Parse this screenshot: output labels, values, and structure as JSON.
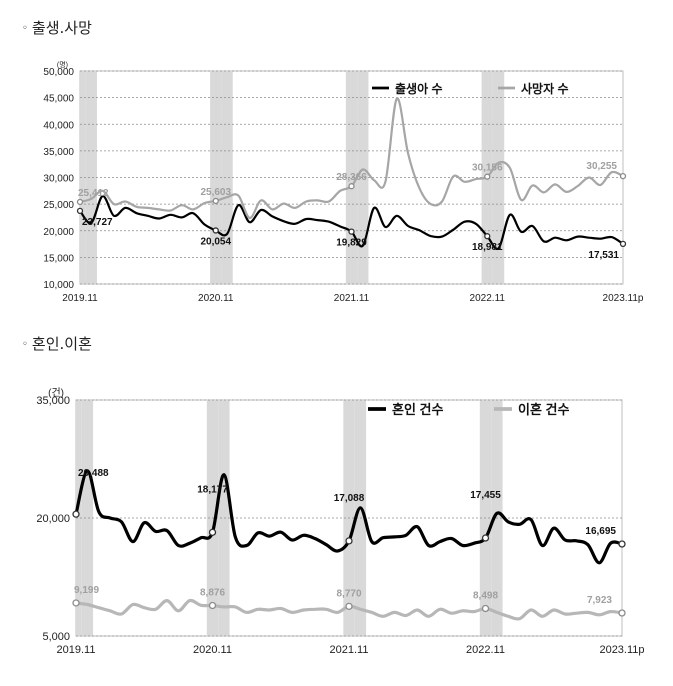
{
  "sections": [
    {
      "bullet": "◦",
      "title": "출생.사망"
    },
    {
      "bullet": "◦",
      "title": "혼인.이혼"
    }
  ],
  "chart_data": [
    {
      "type": "line",
      "unit": "(명)",
      "ylim": [
        10000,
        50000
      ],
      "yticks": [
        "10,000",
        "15,000",
        "20,000",
        "25,000",
        "30,000",
        "35,000",
        "40,000",
        "45,000",
        "50,000"
      ],
      "xlim": [
        0,
        48
      ],
      "xticks": [
        {
          "x": 0,
          "label": "2019.11"
        },
        {
          "x": 12,
          "label": "2020.11"
        },
        {
          "x": 24,
          "label": "2021.11"
        },
        {
          "x": 36,
          "label": "2022.11"
        },
        {
          "x": 48,
          "label": "2023.11p"
        }
      ],
      "shaded_months": [
        0,
        1,
        12,
        13,
        24,
        25,
        36,
        37
      ],
      "grid": true,
      "legend_position": "top",
      "series": [
        {
          "name": "출생아 수",
          "color": "#000000",
          "values": [
            23727,
            21500,
            26500,
            22800,
            24300,
            23300,
            22800,
            22300,
            23000,
            22500,
            23300,
            21200,
            20054,
            19400,
            24800,
            21600,
            23900,
            22700,
            21800,
            21300,
            22200,
            22000,
            21700,
            20800,
            19829,
            17200,
            24300,
            20700,
            22800,
            20900,
            20100,
            19000,
            18900,
            20200,
            21700,
            21300,
            18981,
            16700,
            23000,
            19800,
            20900,
            18000,
            18700,
            18200,
            18900,
            18700,
            18500,
            18800,
            17531
          ],
          "labels": [
            {
              "x": 0,
              "text": "23,727"
            },
            {
              "x": 12,
              "text": "20,054"
            },
            {
              "x": 24,
              "text": "19,829"
            },
            {
              "x": 36,
              "text": "18,981"
            },
            {
              "x": 48,
              "text": "17,531"
            }
          ]
        },
        {
          "name": "사망자 수",
          "color": "#a6a6a6",
          "values": [
            25412,
            26000,
            27500,
            25000,
            25500,
            24500,
            24300,
            24000,
            23800,
            24800,
            24000,
            25200,
            25603,
            26300,
            26600,
            22400,
            25700,
            24000,
            25100,
            24300,
            25500,
            25700,
            25500,
            27500,
            28366,
            31500,
            29500,
            29200,
            44800,
            34500,
            28000,
            25000,
            25500,
            30200,
            29200,
            29700,
            30156,
            32800,
            31800,
            25800,
            28500,
            27200,
            28700,
            27300,
            28400,
            30000,
            28600,
            31000,
            30255
          ],
          "labels": [
            {
              "x": 0,
              "text": "25,412"
            },
            {
              "x": 12,
              "text": "25,603"
            },
            {
              "x": 24,
              "text": "28,366"
            },
            {
              "x": 36,
              "text": "30,156"
            },
            {
              "x": 48,
              "text": "30,255"
            }
          ]
        }
      ]
    },
    {
      "type": "line",
      "unit": "(건)",
      "ylim": [
        5000,
        35000
      ],
      "yticks": [
        "5,000",
        "20,000",
        "35,000"
      ],
      "xlim": [
        0,
        48
      ],
      "xticks": [
        {
          "x": 0,
          "label": "2019.11"
        },
        {
          "x": 12,
          "label": "2020.11"
        },
        {
          "x": 24,
          "label": "2021.11"
        },
        {
          "x": 36,
          "label": "2022.11"
        },
        {
          "x": 48,
          "label": "2023.11p"
        }
      ],
      "shaded_months": [
        0,
        1,
        12,
        13,
        24,
        25,
        36,
        37
      ],
      "grid": true,
      "legend_position": "top",
      "series": [
        {
          "name": "혼인 건수",
          "color": "#000000",
          "values": [
            20488,
            26000,
            20800,
            20000,
            19500,
            17000,
            19400,
            18300,
            18400,
            16500,
            16800,
            17500,
            18177,
            25500,
            17600,
            16500,
            18100,
            17700,
            18200,
            17200,
            17800,
            17400,
            16600,
            15800,
            17088,
            21300,
            17000,
            17500,
            17600,
            17800,
            18900,
            16500,
            17000,
            17400,
            16500,
            16800,
            17455,
            20600,
            19500,
            19200,
            19800,
            16500,
            18700,
            17200,
            17100,
            16600,
            14300,
            16800,
            16695
          ],
          "labels": [
            {
              "x": 0,
              "text": "20,488"
            },
            {
              "x": 12,
              "text": "18,177"
            },
            {
              "x": 24,
              "text": "17,088"
            },
            {
              "x": 36,
              "text": "17,455"
            },
            {
              "x": 48,
              "text": "16,695"
            }
          ]
        },
        {
          "name": "이혼 건수",
          "color": "#b7b7b7",
          "values": [
            9199,
            9000,
            8600,
            8200,
            7800,
            9000,
            8600,
            8400,
            9500,
            8200,
            9500,
            8900,
            8876,
            8700,
            8700,
            8000,
            8400,
            8300,
            8500,
            8000,
            8300,
            8400,
            8400,
            8000,
            8770,
            8400,
            8000,
            7500,
            8000,
            7600,
            8300,
            7500,
            8400,
            7900,
            8200,
            8100,
            8498,
            8000,
            7500,
            7200,
            8300,
            7500,
            8300,
            7800,
            7900,
            8000,
            7700,
            8100,
            7923
          ],
          "labels": [
            {
              "x": 0,
              "text": "9,199"
            },
            {
              "x": 12,
              "text": "8,876"
            },
            {
              "x": 24,
              "text": "8,770"
            },
            {
              "x": 36,
              "text": "8,498"
            },
            {
              "x": 48,
              "text": "7,923"
            }
          ]
        }
      ]
    }
  ]
}
